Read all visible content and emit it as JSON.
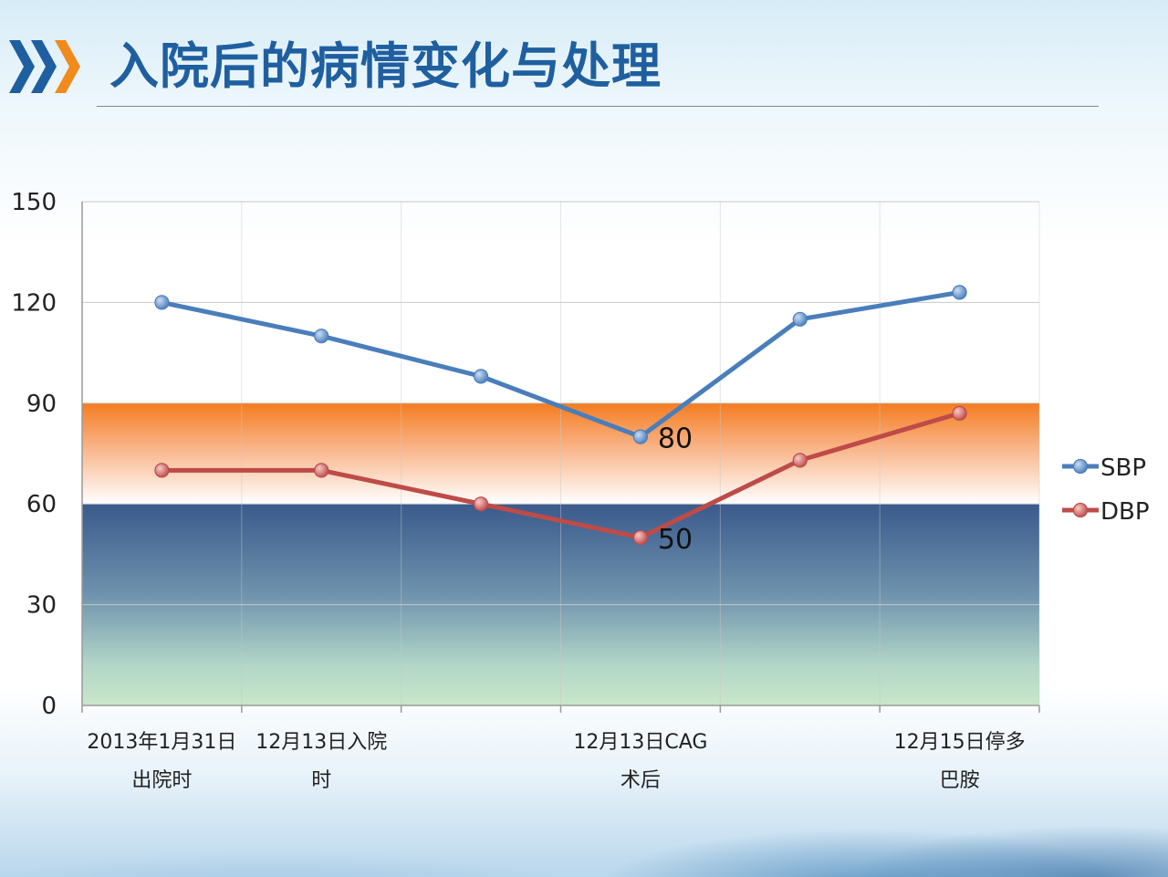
{
  "title": "入院后的病情变化与处理",
  "icons": {
    "header": "triple-chevron-icon"
  },
  "colors": {
    "title": "#1f5fa0",
    "chevron_blue": "#1f5fa0",
    "chevron_orange": "#f08a1c",
    "sbp": "#4a7ebb",
    "dbp": "#be4b48",
    "band_orange": "#f47c20",
    "band_navy": "#3a5a8c",
    "band_green": "#c9e7c9"
  },
  "chart_data": {
    "type": "line",
    "categories": [
      [
        "2013年1月31日",
        "出院时"
      ],
      [
        "12月13日入院",
        "时"
      ],
      [
        "",
        ""
      ],
      [
        "12月13日CAG",
        "术后"
      ],
      [
        "",
        ""
      ],
      [
        "12月15日停多",
        "巴胺"
      ]
    ],
    "series": [
      {
        "name": "SBP",
        "values": [
          120,
          110,
          98,
          80,
          115,
          123
        ]
      },
      {
        "name": "DBP",
        "values": [
          70,
          70,
          60,
          50,
          73,
          87
        ]
      }
    ],
    "data_labels": [
      {
        "series": "SBP",
        "index": 3,
        "text": "80"
      },
      {
        "series": "DBP",
        "index": 3,
        "text": "50"
      }
    ],
    "bands": [
      {
        "from": 60,
        "to": 90,
        "style": "orange gradient fading to white"
      },
      {
        "from": 0,
        "to": 60,
        "style": "navy gradient fading to light green"
      }
    ],
    "ylim": [
      0,
      150
    ],
    "yticks": [
      0,
      30,
      60,
      90,
      120,
      150
    ],
    "ytick_labels": [
      "0",
      "30",
      "60",
      "90",
      "120",
      "150"
    ],
    "grid": true,
    "legend": "right"
  }
}
